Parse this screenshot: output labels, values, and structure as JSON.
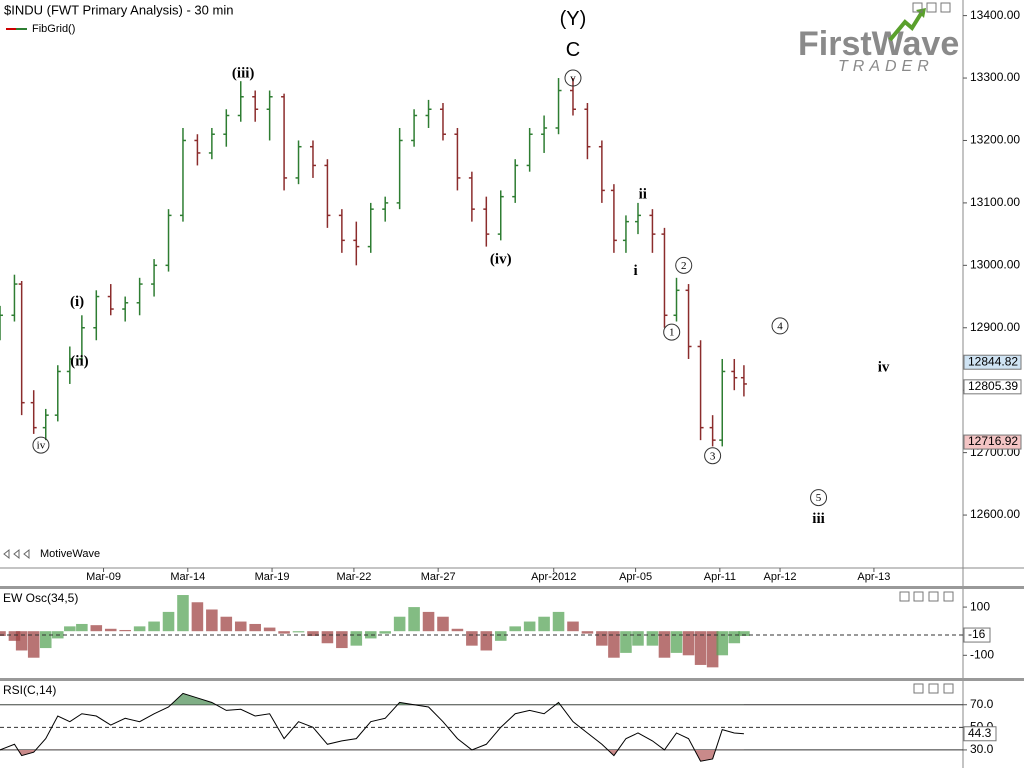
{
  "header": {
    "title": "$INDU (FWT Primary Analysis) - 30 min",
    "indicator": "FibGrid()",
    "brand": "MotiveWave",
    "logo": "FirstWave",
    "logo_sub": "TRADER"
  },
  "chart_data": [
    {
      "type": "ohlc",
      "up_color": "#2e7d32",
      "down_color": "#8b2c2c",
      "x": [
        0,
        6,
        9,
        14,
        19,
        24,
        29,
        34,
        40,
        46,
        52,
        58,
        64,
        70,
        76,
        82,
        88,
        94,
        100,
        106,
        112,
        118,
        124,
        130,
        136,
        142,
        148,
        154,
        160,
        166,
        172,
        178,
        184,
        190,
        196,
        202,
        208,
        214,
        220,
        226,
        232,
        238,
        244,
        250,
        255,
        260,
        265,
        271,
        276,
        281,
        286,
        291,
        296,
        300,
        305,
        309
      ],
      "open": [
        12900,
        12920,
        12970,
        12780,
        12740,
        12760,
        12830,
        12850,
        12900,
        12950,
        12930,
        12940,
        12970,
        13000,
        13080,
        13200,
        13180,
        13210,
        13240,
        13270,
        13250,
        13270,
        13140,
        13190,
        13160,
        13080,
        13040,
        13030,
        13090,
        13100,
        13200,
        13240,
        13250,
        13210,
        13140,
        13090,
        13050,
        13110,
        13160,
        13210,
        13220,
        13280,
        13250,
        13190,
        13120,
        13040,
        13070,
        13080,
        13050,
        12920,
        12960,
        12870,
        12740,
        12720,
        12830,
        12820
      ],
      "high": [
        12935,
        12985,
        12975,
        12800,
        12770,
        12840,
        12870,
        12920,
        12960,
        12970,
        12950,
        12980,
        13010,
        13090,
        13220,
        13210,
        13220,
        13250,
        13295,
        13280,
        13280,
        13275,
        13200,
        13200,
        13170,
        13090,
        13070,
        13100,
        13110,
        13220,
        13250,
        13265,
        13260,
        13220,
        13150,
        13110,
        13120,
        13170,
        13220,
        13240,
        13300,
        13300,
        13260,
        13200,
        13130,
        13080,
        13100,
        13090,
        13060,
        12980,
        12970,
        12880,
        12760,
        12850,
        12850,
        12840
      ],
      "low": [
        12880,
        12910,
        12760,
        12730,
        12720,
        12750,
        12810,
        12840,
        12880,
        12920,
        12910,
        12920,
        12950,
        12990,
        13070,
        13160,
        13170,
        13190,
        13230,
        13230,
        13200,
        13120,
        13130,
        13140,
        13060,
        13020,
        13000,
        13020,
        13070,
        13090,
        13190,
        13220,
        13200,
        13120,
        13070,
        13030,
        13040,
        13100,
        13150,
        13180,
        13210,
        13240,
        13170,
        13100,
        13020,
        13020,
        13050,
        13020,
        12900,
        12910,
        12850,
        12720,
        12710,
        12710,
        12800,
        12790
      ],
      "close": [
        12920,
        12970,
        12780,
        12740,
        12760,
        12830,
        12850,
        12900,
        12950,
        12930,
        12940,
        12970,
        13000,
        13080,
        13200,
        13180,
        13210,
        13240,
        13270,
        13250,
        13270,
        13140,
        13190,
        13160,
        13080,
        13040,
        13030,
        13090,
        13100,
        13200,
        13240,
        13250,
        13210,
        13140,
        13090,
        13050,
        13110,
        13160,
        13210,
        13220,
        13280,
        13250,
        13190,
        13120,
        13040,
        13070,
        13080,
        13050,
        12920,
        12960,
        12870,
        12740,
        12720,
        12830,
        12820,
        12810
      ],
      "xlim": [
        0,
        400
      ],
      "xticks": [
        {
          "value": 43,
          "label": "Mar-09"
        },
        {
          "value": 78,
          "label": "Mar-14"
        },
        {
          "value": 113,
          "label": "Mar-19"
        },
        {
          "value": 147,
          "label": "Mar-22"
        },
        {
          "value": 182,
          "label": "Mar-27"
        },
        {
          "value": 230,
          "label": "Apr-2012"
        },
        {
          "value": 264,
          "label": "Apr-05"
        },
        {
          "value": 299,
          "label": "Apr-11"
        },
        {
          "value": 324,
          "label": "Apr-12"
        },
        {
          "value": 363,
          "label": "Apr-13"
        }
      ],
      "ylim": [
        12520,
        13425
      ],
      "yticks": [
        {
          "value": 12600,
          "label": "12600.00"
        },
        {
          "value": 12700,
          "label": "12700.00"
        },
        {
          "value": 12800,
          "label": "12800.00"
        },
        {
          "value": 12900,
          "label": "12900.00"
        },
        {
          "value": 13000,
          "label": "13000.00"
        },
        {
          "value": 13100,
          "label": "13100.00"
        },
        {
          "value": 13200,
          "label": "13200.00"
        },
        {
          "value": 13300,
          "label": "13300.00"
        },
        {
          "value": 13400,
          "label": "13400.00"
        }
      ],
      "price_markers": [
        {
          "value": 12844.82,
          "color": "#cfe3f3"
        },
        {
          "value": 12805.39,
          "color": "#ffffff"
        },
        {
          "value": 12716.92,
          "color": "#f3c4c4"
        }
      ],
      "annotations": [
        {
          "label": "(Y)",
          "x": 238,
          "y": 13395,
          "circled": false
        },
        {
          "label": "C",
          "x": 238,
          "y": 13345,
          "circled": false
        },
        {
          "label": "v",
          "x": 238,
          "y": 13300,
          "circled": true
        },
        {
          "label": "(iii)",
          "x": 101,
          "y": 13308,
          "circled": false
        },
        {
          "label": "(i)",
          "x": 32,
          "y": 12942,
          "circled": false
        },
        {
          "label": "(ii)",
          "x": 33,
          "y": 12847,
          "circled": false
        },
        {
          "label": "iv",
          "x": 17,
          "y": 12712,
          "circled": true
        },
        {
          "label": "(iv)",
          "x": 208,
          "y": 13010,
          "circled": false
        },
        {
          "label": "ii",
          "x": 267,
          "y": 13114,
          "circled": false
        },
        {
          "label": "i",
          "x": 264,
          "y": 12992,
          "circled": false
        },
        {
          "label": "2",
          "x": 284,
          "y": 13000,
          "circled": true
        },
        {
          "label": "1",
          "x": 279,
          "y": 12893,
          "circled": true
        },
        {
          "label": "3",
          "x": 296,
          "y": 12695,
          "circled": true
        },
        {
          "label": "4",
          "x": 324,
          "y": 12903,
          "circled": true
        },
        {
          "label": "iv",
          "x": 367,
          "y": 12837,
          "circled": false
        },
        {
          "label": "5",
          "x": 340,
          "y": 12628,
          "circled": true
        },
        {
          "label": "iii",
          "x": 340,
          "y": 12594,
          "circled": false
        }
      ]
    },
    {
      "type": "bar",
      "title": "EW Osc(34,5)",
      "up_color": "#5aa55a",
      "down_color": "#a04545",
      "x": [
        0,
        6,
        9,
        14,
        19,
        24,
        29,
        34,
        40,
        46,
        52,
        58,
        64,
        70,
        76,
        82,
        88,
        94,
        100,
        106,
        112,
        118,
        124,
        130,
        136,
        142,
        148,
        154,
        160,
        166,
        172,
        178,
        184,
        190,
        196,
        202,
        208,
        214,
        220,
        226,
        232,
        238,
        244,
        250,
        255,
        260,
        265,
        271,
        276,
        281,
        286,
        291,
        296,
        300,
        305,
        309
      ],
      "values": [
        -20,
        -40,
        -80,
        -110,
        -70,
        -30,
        20,
        30,
        25,
        10,
        5,
        20,
        40,
        80,
        150,
        120,
        90,
        60,
        40,
        30,
        15,
        -10,
        -5,
        -20,
        -50,
        -70,
        -60,
        -30,
        -10,
        60,
        100,
        80,
        60,
        10,
        -60,
        -80,
        -40,
        20,
        40,
        60,
        80,
        40,
        -10,
        -60,
        -110,
        -90,
        -60,
        -60,
        -110,
        -90,
        -100,
        -140,
        -150,
        -100,
        -50,
        -20
      ],
      "xlim": [
        0,
        400
      ],
      "ylim": [
        -190,
        175
      ],
      "yticks": [
        100,
        -100
      ],
      "marker": -16
    },
    {
      "type": "line",
      "title": "RSI(C,14)",
      "color": "#000000",
      "over_color": "#7fae85",
      "under_color": "#c98a8a",
      "x": [
        0,
        6,
        9,
        14,
        19,
        24,
        29,
        34,
        40,
        46,
        52,
        58,
        64,
        70,
        76,
        82,
        88,
        94,
        100,
        106,
        112,
        118,
        124,
        130,
        136,
        142,
        148,
        154,
        160,
        166,
        172,
        178,
        184,
        190,
        196,
        202,
        208,
        214,
        220,
        226,
        232,
        238,
        244,
        250,
        255,
        260,
        265,
        271,
        276,
        281,
        286,
        291,
        296,
        300,
        305,
        309
      ],
      "values": [
        30,
        35,
        25,
        28,
        40,
        60,
        55,
        62,
        60,
        52,
        58,
        55,
        62,
        68,
        80,
        76,
        72,
        65,
        66,
        60,
        62,
        40,
        55,
        50,
        35,
        38,
        40,
        55,
        58,
        72,
        70,
        68,
        55,
        40,
        30,
        35,
        50,
        62,
        65,
        62,
        72,
        55,
        45,
        35,
        25,
        40,
        45,
        38,
        30,
        45,
        40,
        20,
        22,
        48,
        45,
        44.3
      ],
      "xlim": [
        0,
        400
      ],
      "ylim": [
        14,
        91
      ],
      "yticks": [
        {
          "value": 70,
          "label": "70.0"
        },
        {
          "value": 50,
          "label": "50.0"
        },
        {
          "value": 30,
          "label": "30.0"
        }
      ],
      "levels": [
        70,
        30
      ],
      "marker": 44.3
    }
  ]
}
